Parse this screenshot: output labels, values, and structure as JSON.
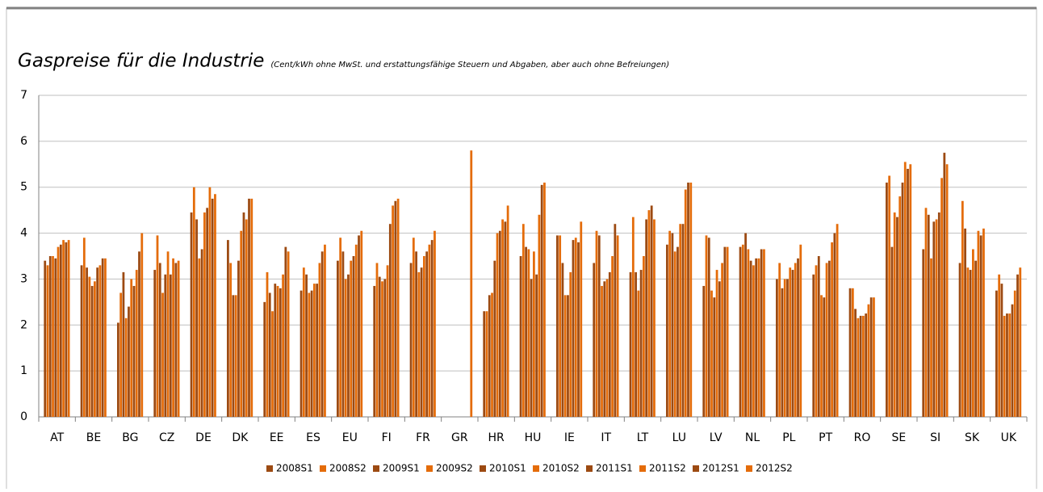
{
  "chart_data": {
    "type": "bar",
    "title": "Gaspreise für die Industrie",
    "subtitle": "(Cent/kWh ohne MwSt. und erstattungsfähige Steuern und Abgaben, aber auch ohne Befreiungen)",
    "categories": [
      "AT",
      "BE",
      "BG",
      "CZ",
      "DE",
      "DK",
      "EE",
      "ES",
      "EU",
      "FI",
      "FR",
      "GR",
      "HR",
      "HU",
      "IE",
      "IT",
      "LT",
      "LU",
      "LV",
      "NL",
      "PL",
      "PT",
      "RO",
      "SE",
      "SI",
      "SK",
      "UK"
    ],
    "series": [
      {
        "name": "2008S1",
        "color": "#9c4a12",
        "values": [
          3.4,
          3.3,
          2.05,
          3.2,
          4.45,
          3.85,
          2.5,
          2.75,
          3.4,
          2.85,
          3.35,
          null,
          2.3,
          3.5,
          3.95,
          3.35,
          3.15,
          3.75,
          2.85,
          3.7,
          3.0,
          3.1,
          2.8,
          5.1,
          3.65,
          3.35,
          2.75
        ]
      },
      {
        "name": "2008S2",
        "color": "#e46c0a",
        "values": [
          3.3,
          3.9,
          2.7,
          3.95,
          5.0,
          3.35,
          3.15,
          3.25,
          3.9,
          3.35,
          3.9,
          null,
          2.3,
          4.2,
          3.95,
          4.05,
          4.35,
          4.05,
          3.95,
          3.75,
          3.35,
          3.3,
          2.8,
          5.25,
          4.55,
          4.7,
          3.1
        ]
      },
      {
        "name": "2009S1",
        "color": "#9c4a12",
        "values": [
          3.5,
          3.25,
          3.15,
          3.35,
          4.3,
          2.65,
          2.7,
          3.1,
          3.6,
          3.05,
          3.6,
          null,
          2.65,
          3.7,
          3.35,
          3.95,
          3.15,
          4.0,
          3.9,
          4.0,
          2.8,
          3.5,
          2.35,
          3.7,
          4.4,
          4.1,
          2.9
        ]
      },
      {
        "name": "2009S2",
        "color": "#e46c0a",
        "values": [
          3.5,
          3.05,
          2.15,
          2.7,
          3.45,
          2.65,
          2.3,
          2.7,
          3.0,
          2.95,
          3.15,
          null,
          2.7,
          3.65,
          2.65,
          2.85,
          2.75,
          3.6,
          2.75,
          3.65,
          3.0,
          2.65,
          2.15,
          4.45,
          3.45,
          3.25,
          2.2
        ]
      },
      {
        "name": "2010S1",
        "color": "#9c4a12",
        "values": [
          3.45,
          2.85,
          2.4,
          3.1,
          3.65,
          3.4,
          2.9,
          2.75,
          3.1,
          3.0,
          3.25,
          null,
          3.4,
          3.0,
          2.65,
          2.95,
          3.2,
          3.7,
          2.6,
          3.4,
          3.0,
          2.6,
          2.2,
          4.35,
          4.25,
          3.2,
          2.25
        ]
      },
      {
        "name": "2010S2",
        "color": "#e46c0a",
        "values": [
          3.7,
          2.95,
          3.0,
          3.6,
          4.45,
          4.05,
          2.85,
          2.9,
          3.4,
          3.3,
          3.5,
          null,
          4.0,
          3.6,
          3.15,
          3.0,
          3.5,
          4.2,
          3.2,
          3.3,
          3.25,
          3.35,
          2.2,
          4.8,
          4.3,
          3.65,
          2.25
        ]
      },
      {
        "name": "2011S1",
        "color": "#9c4a12",
        "values": [
          3.75,
          3.25,
          2.85,
          3.1,
          4.55,
          4.45,
          2.8,
          2.9,
          3.5,
          4.2,
          3.6,
          null,
          4.05,
          3.1,
          3.85,
          3.15,
          4.3,
          4.2,
          2.95,
          3.45,
          3.2,
          3.4,
          2.25,
          5.1,
          4.45,
          3.4,
          2.45
        ]
      },
      {
        "name": "2011S2",
        "color": "#e46c0a",
        "values": [
          3.85,
          3.3,
          3.2,
          3.45,
          5.0,
          4.3,
          3.1,
          3.35,
          3.75,
          4.6,
          3.75,
          null,
          4.3,
          4.4,
          3.9,
          3.5,
          4.5,
          4.95,
          3.35,
          3.45,
          3.35,
          3.8,
          2.45,
          5.55,
          5.2,
          4.05,
          2.75
        ]
      },
      {
        "name": "2012S1",
        "color": "#9c4a12",
        "values": [
          3.8,
          3.45,
          3.6,
          3.35,
          4.75,
          4.75,
          3.7,
          3.6,
          3.95,
          4.7,
          3.85,
          null,
          4.25,
          5.05,
          3.8,
          4.2,
          4.6,
          5.1,
          3.7,
          3.65,
          3.45,
          4.0,
          2.6,
          5.4,
          5.75,
          3.95,
          3.1
        ]
      },
      {
        "name": "2012S2",
        "color": "#e46c0a",
        "values": [
          3.85,
          3.45,
          4.0,
          3.4,
          4.85,
          4.75,
          3.6,
          3.75,
          4.05,
          4.75,
          4.05,
          5.8,
          4.6,
          5.1,
          4.25,
          3.95,
          4.3,
          5.1,
          3.7,
          3.65,
          3.75,
          4.2,
          2.6,
          5.5,
          5.5,
          4.1,
          3.25
        ]
      }
    ],
    "ylim": [
      0,
      7
    ],
    "yticks": [
      0,
      1,
      2,
      3,
      4,
      5,
      6,
      7
    ],
    "grid": true,
    "legend": "bottom"
  }
}
